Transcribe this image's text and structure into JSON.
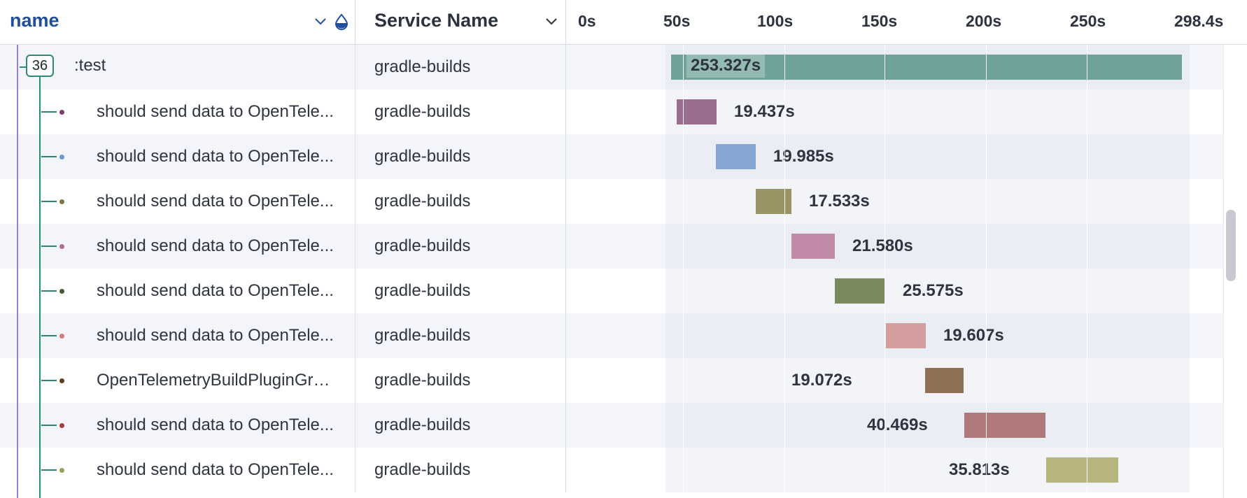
{
  "header": {
    "name_label": "name",
    "service_label": "Service Name",
    "ticks": [
      "0s",
      "50s",
      "100s",
      "150s",
      "200s",
      "250s",
      "298.4s"
    ]
  },
  "parent": {
    "count": "36",
    "label": ":test",
    "service": "gradle-builds",
    "duration": "253.327s",
    "color": "#6fa39a"
  },
  "spans": [
    {
      "label": "should send data to OpenTele...",
      "service": "gradle-builds",
      "duration": "19.437s",
      "color": "#9a6e8c",
      "dot": "#7a3d68"
    },
    {
      "label": "should send data to OpenTele...",
      "service": "gradle-builds",
      "duration": "19.985s",
      "color": "#86a6d2",
      "dot": "#6f97cf"
    },
    {
      "label": "should send data to OpenTele...",
      "service": "gradle-builds",
      "duration": "17.533s",
      "color": "#9a9464",
      "dot": "#7b7440"
    },
    {
      "label": "should send data to OpenTele...",
      "service": "gradle-builds",
      "duration": "21.580s",
      "color": "#c08aa8",
      "dot": "#b36c96"
    },
    {
      "label": "should send data to OpenTele...",
      "service": "gradle-builds",
      "duration": "25.575s",
      "color": "#7a8a5c",
      "dot": "#4a5a30"
    },
    {
      "label": "should send data to OpenTele...",
      "service": "gradle-builds",
      "duration": "19.607s",
      "color": "#d49e9e",
      "dot": "#d07b7b"
    },
    {
      "label": "OpenTelemetryBuildPluginGrp...",
      "service": "gradle-builds",
      "duration": "19.072s",
      "color": "#8f7254",
      "dot": "#5b3f1c"
    },
    {
      "label": "should send data to OpenTele...",
      "service": "gradle-builds",
      "duration": "40.469s",
      "color": "#b07a7c",
      "dot": "#a8383d"
    },
    {
      "label": "should send data to OpenTele...",
      "service": "gradle-builds",
      "duration": "35.813s",
      "color": "#b8b480",
      "dot": "#9aa05a"
    }
  ]
}
